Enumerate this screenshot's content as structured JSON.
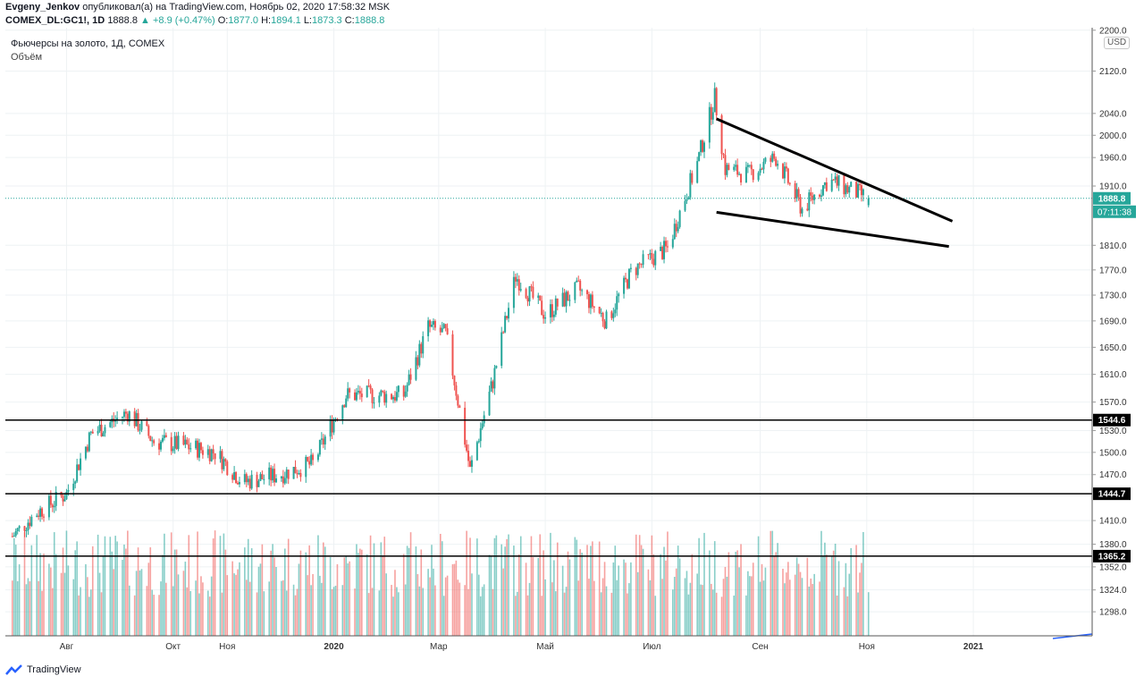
{
  "header": {
    "author": "Evgeny_Jenkov",
    "published_text": "опубликовал(а) на TradingView.com, Ноябрь 02, 2020 17:58:32 MSK",
    "symbol": "COMEX_DL:GC1!, 1D",
    "last": "1888.8",
    "change": "▲ +8.9 (+0.47%)",
    "open_label": "O:",
    "open": "1877.0",
    "high_label": "H:",
    "high": "1894.1",
    "low_label": "L:",
    "low": "1873.3",
    "close_label": "C:",
    "close": "1888.8"
  },
  "legend": {
    "title": "Фьючерсы на золото, 1Д, COMEX",
    "volume": "Объём"
  },
  "price_axis": {
    "currency": "USD",
    "current_price": "1888.8",
    "countdown": "07:11:38"
  },
  "levels": [
    {
      "value": 1544.6,
      "label": "1544.6"
    },
    {
      "value": 1444.7,
      "label": "1444.7"
    },
    {
      "value": 1365.2,
      "label": "1365.2"
    }
  ],
  "footer": {
    "brand": "TradingView"
  },
  "colors": {
    "up": "#26a69a",
    "down": "#ef5350",
    "accent": "#26a69a",
    "line": "#000000"
  },
  "chart_data": {
    "type": "candlestick",
    "title": "Фьючерсы на золото, 1Д, COMEX",
    "y_scale": "log",
    "ylim": [
      1270,
      2205
    ],
    "y_ticks": [
      2200.0,
      2120.0,
      2040.0,
      2000.0,
      1960.0,
      1910.0,
      1810.0,
      1770.0,
      1730.0,
      1690.0,
      1650.0,
      1610.0,
      1570.0,
      1530.0,
      1500.0,
      1470.0,
      1410.0,
      1380.0,
      1352.0,
      1324.0,
      1298.0
    ],
    "x_ticks": [
      "Авг",
      "Окт",
      "Ноя",
      "2020",
      "Мар",
      "Май",
      "Июл",
      "Сен",
      "Ноя",
      "2021"
    ],
    "approx_close_series": [
      {
        "date": "2019-07-01",
        "close": 1390
      },
      {
        "date": "2019-07-15",
        "close": 1420
      },
      {
        "date": "2019-08-01",
        "close": 1445
      },
      {
        "date": "2019-08-15",
        "close": 1525
      },
      {
        "date": "2019-09-05",
        "close": 1555
      },
      {
        "date": "2019-09-20",
        "close": 1515
      },
      {
        "date": "2019-10-05",
        "close": 1510
      },
      {
        "date": "2019-10-25",
        "close": 1500
      },
      {
        "date": "2019-11-10",
        "close": 1460
      },
      {
        "date": "2019-12-01",
        "close": 1470
      },
      {
        "date": "2019-12-20",
        "close": 1485
      },
      {
        "date": "2020-01-08",
        "close": 1580
      },
      {
        "date": "2020-01-25",
        "close": 1580
      },
      {
        "date": "2020-02-10",
        "close": 1580
      },
      {
        "date": "2020-02-24",
        "close": 1680
      },
      {
        "date": "2020-03-05",
        "close": 1670
      },
      {
        "date": "2020-03-19",
        "close": 1475
      },
      {
        "date": "2020-04-01",
        "close": 1600
      },
      {
        "date": "2020-04-14",
        "close": 1760
      },
      {
        "date": "2020-05-01",
        "close": 1700
      },
      {
        "date": "2020-05-20",
        "close": 1740
      },
      {
        "date": "2020-06-05",
        "close": 1690
      },
      {
        "date": "2020-06-20",
        "close": 1770
      },
      {
        "date": "2020-07-10",
        "close": 1805
      },
      {
        "date": "2020-07-27",
        "close": 1950
      },
      {
        "date": "2020-08-06",
        "close": 2070
      },
      {
        "date": "2020-08-12",
        "close": 1940
      },
      {
        "date": "2020-08-25",
        "close": 1930
      },
      {
        "date": "2020-09-10",
        "close": 1960
      },
      {
        "date": "2020-09-25",
        "close": 1870
      },
      {
        "date": "2020-10-10",
        "close": 1920
      },
      {
        "date": "2020-10-25",
        "close": 1900
      },
      {
        "date": "2020-11-02",
        "close": 1888.8
      }
    ],
    "trendlines": [
      {
        "name": "upper",
        "from": {
          "date": "2020-08-07",
          "price": 2030
        },
        "to": {
          "date": "2020-12-20",
          "price": 1850
        }
      },
      {
        "name": "lower",
        "from": {
          "date": "2020-08-07",
          "price": 1865
        },
        "to": {
          "date": "2020-12-18",
          "price": 1808
        }
      }
    ]
  }
}
